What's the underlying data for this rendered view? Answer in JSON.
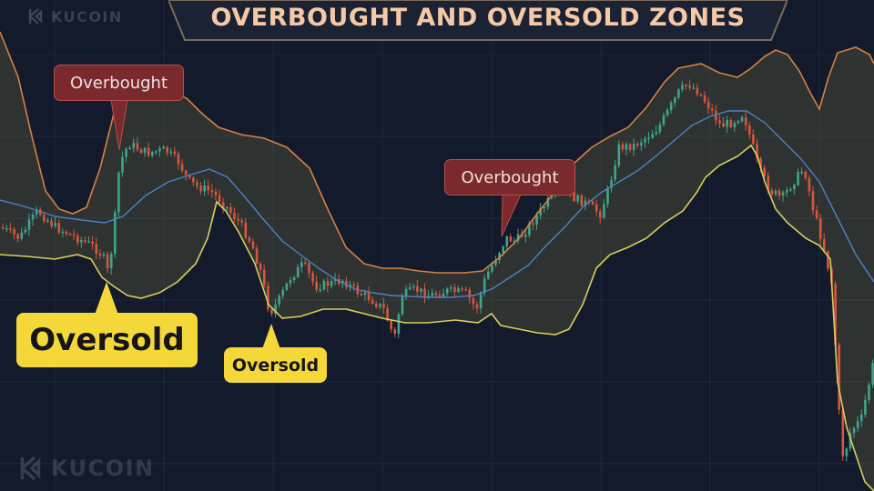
{
  "title": "OVERBOUGHT AND OVERSOLD ZONES",
  "brand": {
    "name": "KUCOIN"
  },
  "annotations": {
    "overbought_1": "Overbought",
    "overbought_2": "Overbought",
    "oversold_1": "Oversold",
    "oversold_2": "Oversold"
  },
  "colors": {
    "background": "#121a2b",
    "grid": "#1e2a40",
    "bullish_candle": "#3fa58c",
    "bearish_candle": "#d8553e",
    "upper_band": "#d7813e",
    "lower_band": "#d9cf5a",
    "middle_band": "#4f7fc4",
    "band_fill": "#56553a",
    "overbought_label": "#7a2a2c",
    "oversold_label": "#f4d83a"
  },
  "chart_data": {
    "type": "candlestick",
    "indicator": "Bollinger Bands",
    "axes_visible": false,
    "grid": true,
    "ylim": [
      0,
      540
    ],
    "price_path": [
      [
        0,
        250
      ],
      [
        20,
        262
      ],
      [
        40,
        232
      ],
      [
        60,
        250
      ],
      [
        80,
        260
      ],
      [
        100,
        270
      ],
      [
        112,
        282
      ],
      [
        118,
        302
      ],
      [
        124,
        250
      ],
      [
        130,
        180
      ],
      [
        140,
        158
      ],
      [
        160,
        168
      ],
      [
        180,
        165
      ],
      [
        195,
        178
      ],
      [
        205,
        198
      ],
      [
        215,
        205
      ],
      [
        230,
        210
      ],
      [
        245,
        225
      ],
      [
        262,
        245
      ],
      [
        275,
        268
      ],
      [
        285,
        298
      ],
      [
        295,
        345
      ],
      [
        305,
        330
      ],
      [
        318,
        305
      ],
      [
        332,
        290
      ],
      [
        345,
        315
      ],
      [
        360,
        312
      ],
      [
        375,
        308
      ],
      [
        390,
        320
      ],
      [
        405,
        328
      ],
      [
        420,
        340
      ],
      [
        432,
        372
      ],
      [
        440,
        325
      ],
      [
        455,
        318
      ],
      [
        470,
        325
      ],
      [
        490,
        320
      ],
      [
        510,
        322
      ],
      [
        522,
        340
      ],
      [
        532,
        305
      ],
      [
        545,
        280
      ],
      [
        555,
        262
      ],
      [
        565,
        265
      ],
      [
        575,
        255
      ],
      [
        588,
        238
      ],
      [
        600,
        222
      ],
      [
        615,
        208
      ],
      [
        630,
        218
      ],
      [
        645,
        225
      ],
      [
        658,
        235
      ],
      [
        668,
        205
      ],
      [
        678,
        162
      ],
      [
        695,
        160
      ],
      [
        710,
        150
      ],
      [
        722,
        140
      ],
      [
        735,
        118
      ],
      [
        745,
        100
      ],
      [
        755,
        92
      ],
      [
        765,
        100
      ],
      [
        778,
        118
      ],
      [
        790,
        138
      ],
      [
        802,
        135
      ],
      [
        815,
        125
      ],
      [
        825,
        158
      ],
      [
        832,
        185
      ],
      [
        845,
        210
      ],
      [
        858,
        218
      ],
      [
        870,
        200
      ],
      [
        882,
        185
      ],
      [
        892,
        230
      ],
      [
        903,
        270
      ],
      [
        913,
        315
      ],
      [
        920,
        450
      ],
      [
        925,
        505
      ],
      [
        933,
        475
      ],
      [
        945,
        460
      ],
      [
        960,
        390
      ]
    ],
    "upper_band": [
      [
        0,
        35
      ],
      [
        20,
        85
      ],
      [
        35,
        150
      ],
      [
        50,
        210
      ],
      [
        65,
        230
      ],
      [
        80,
        235
      ],
      [
        95,
        228
      ],
      [
        110,
        185
      ],
      [
        125,
        125
      ],
      [
        145,
        102
      ],
      [
        165,
        95
      ],
      [
        185,
        100
      ],
      [
        205,
        108
      ],
      [
        222,
        125
      ],
      [
        240,
        140
      ],
      [
        265,
        148
      ],
      [
        290,
        152
      ],
      [
        315,
        162
      ],
      [
        340,
        185
      ],
      [
        360,
        230
      ],
      [
        380,
        272
      ],
      [
        400,
        290
      ],
      [
        420,
        295
      ],
      [
        440,
        295
      ],
      [
        460,
        298
      ],
      [
        480,
        300
      ],
      [
        510,
        300
      ],
      [
        530,
        298
      ],
      [
        550,
        282
      ],
      [
        570,
        262
      ],
      [
        590,
        235
      ],
      [
        610,
        210
      ],
      [
        630,
        180
      ],
      [
        650,
        162
      ],
      [
        670,
        150
      ],
      [
        690,
        140
      ],
      [
        710,
        118
      ],
      [
        730,
        90
      ],
      [
        745,
        75
      ],
      [
        770,
        70
      ],
      [
        790,
        80
      ],
      [
        810,
        85
      ],
      [
        825,
        75
      ],
      [
        840,
        62
      ],
      [
        852,
        55
      ],
      [
        865,
        60
      ],
      [
        878,
        78
      ],
      [
        890,
        102
      ],
      [
        900,
        120
      ],
      [
        910,
        85
      ],
      [
        920,
        58
      ],
      [
        940,
        52
      ],
      [
        955,
        60
      ],
      [
        960,
        70
      ]
    ],
    "middle_band": [
      [
        0,
        220
      ],
      [
        30,
        228
      ],
      [
        60,
        238
      ],
      [
        90,
        242
      ],
      [
        115,
        245
      ],
      [
        135,
        238
      ],
      [
        160,
        215
      ],
      [
        185,
        200
      ],
      [
        210,
        192
      ],
      [
        230,
        186
      ],
      [
        250,
        195
      ],
      [
        270,
        218
      ],
      [
        290,
        242
      ],
      [
        310,
        265
      ],
      [
        330,
        280
      ],
      [
        350,
        295
      ],
      [
        370,
        308
      ],
      [
        390,
        318
      ],
      [
        410,
        322
      ],
      [
        430,
        325
      ],
      [
        450,
        326
      ],
      [
        470,
        327
      ],
      [
        495,
        327
      ],
      [
        520,
        325
      ],
      [
        540,
        318
      ],
      [
        560,
        305
      ],
      [
        580,
        292
      ],
      [
        600,
        270
      ],
      [
        620,
        250
      ],
      [
        640,
        228
      ],
      [
        660,
        212
      ],
      [
        680,
        200
      ],
      [
        700,
        188
      ],
      [
        720,
        172
      ],
      [
        740,
        155
      ],
      [
        760,
        138
      ],
      [
        780,
        128
      ],
      [
        800,
        122
      ],
      [
        820,
        122
      ],
      [
        840,
        135
      ],
      [
        860,
        155
      ],
      [
        880,
        175
      ],
      [
        900,
        200
      ],
      [
        920,
        240
      ],
      [
        940,
        280
      ],
      [
        960,
        310
      ]
    ],
    "lower_band": [
      [
        0,
        280
      ],
      [
        30,
        282
      ],
      [
        60,
        285
      ],
      [
        85,
        280
      ],
      [
        100,
        285
      ],
      [
        112,
        305
      ],
      [
        125,
        315
      ],
      [
        140,
        325
      ],
      [
        155,
        328
      ],
      [
        175,
        322
      ],
      [
        195,
        310
      ],
      [
        215,
        290
      ],
      [
        228,
        262
      ],
      [
        238,
        222
      ],
      [
        248,
        232
      ],
      [
        262,
        255
      ],
      [
        280,
        290
      ],
      [
        295,
        335
      ],
      [
        310,
        350
      ],
      [
        330,
        348
      ],
      [
        355,
        340
      ],
      [
        380,
        340
      ],
      [
        400,
        345
      ],
      [
        420,
        350
      ],
      [
        445,
        355
      ],
      [
        470,
        355
      ],
      [
        500,
        352
      ],
      [
        525,
        355
      ],
      [
        540,
        345
      ],
      [
        550,
        358
      ],
      [
        570,
        362
      ],
      [
        590,
        366
      ],
      [
        610,
        368
      ],
      [
        625,
        362
      ],
      [
        640,
        335
      ],
      [
        655,
        295
      ],
      [
        670,
        280
      ],
      [
        690,
        272
      ],
      [
        710,
        262
      ],
      [
        730,
        245
      ],
      [
        750,
        232
      ],
      [
        765,
        212
      ],
      [
        775,
        195
      ],
      [
        790,
        182
      ],
      [
        810,
        172
      ],
      [
        825,
        160
      ],
      [
        832,
        172
      ],
      [
        840,
        200
      ],
      [
        852,
        230
      ],
      [
        865,
        245
      ],
      [
        885,
        262
      ],
      [
        900,
        270
      ],
      [
        912,
        285
      ],
      [
        920,
        420
      ],
      [
        930,
        470
      ],
      [
        940,
        500
      ],
      [
        950,
        530
      ],
      [
        960,
        540
      ]
    ],
    "zones": [
      {
        "type": "overbought",
        "label": "Overbought"
      },
      {
        "type": "overbought",
        "label": "Overbought"
      },
      {
        "type": "oversold",
        "label": "Oversold"
      },
      {
        "type": "oversold",
        "label": "Oversold"
      }
    ]
  }
}
